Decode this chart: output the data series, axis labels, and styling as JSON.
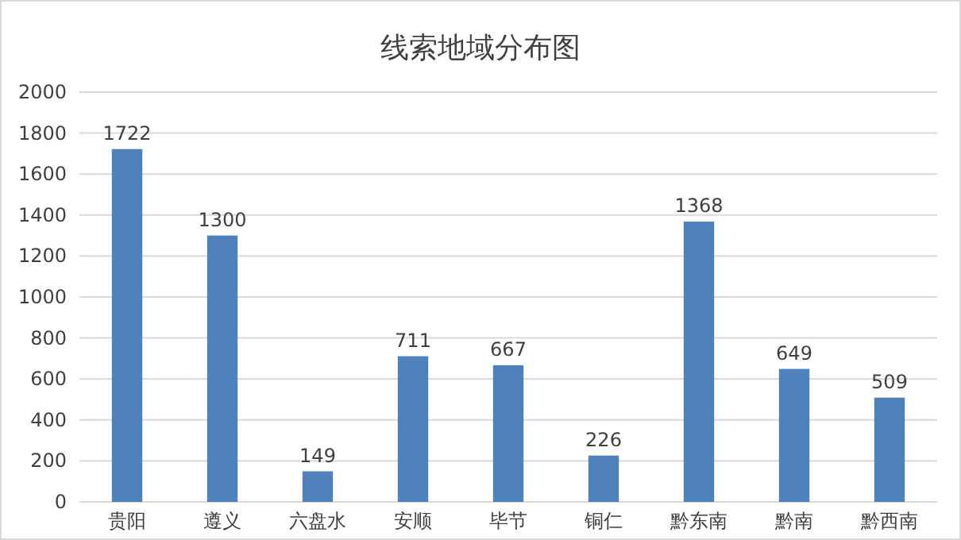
{
  "chart_data": {
    "type": "bar",
    "title": "线索地域分布图",
    "categories": [
      "贵阳",
      "遵义",
      "六盘水",
      "安顺",
      "毕节",
      "铜仁",
      "黔东南",
      "黔南",
      "黔西南"
    ],
    "values": [
      1722,
      1300,
      149,
      711,
      667,
      226,
      1368,
      649,
      509
    ],
    "color": "#4f81bd",
    "ylim": [
      0,
      2000
    ],
    "yticks": [
      0,
      200,
      400,
      600,
      800,
      1000,
      1200,
      1400,
      1600,
      1800,
      2000
    ],
    "grid": "y",
    "data_labels": true
  }
}
